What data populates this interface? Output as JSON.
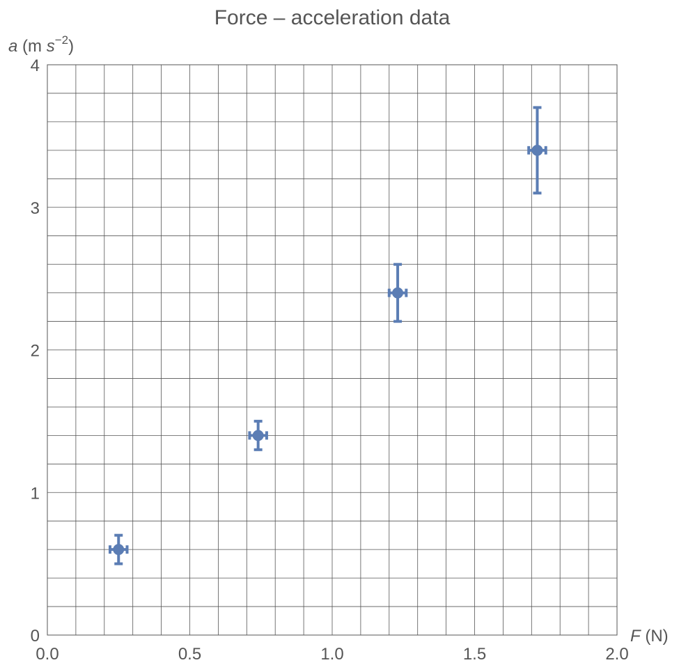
{
  "colors": {
    "series": "#5b7db4",
    "grid": "#555555",
    "text": "#555555"
  },
  "chart_data": {
    "type": "scatter",
    "title": "Force – acceleration data",
    "xlabel": {
      "var": "F",
      "unit": " (N)"
    },
    "ylabel": {
      "var": "a",
      "prefix": " (m ",
      "unit_var": "s",
      "exponent": "−2",
      "suffix": ")"
    },
    "xlim": [
      0,
      2
    ],
    "ylim": [
      0,
      4
    ],
    "grid": true,
    "grid_step_x": 0.1,
    "grid_step_y": 0.2,
    "xticks": [
      {
        "value": 0,
        "label": "0.0"
      },
      {
        "value": 0.5,
        "label": "0.5"
      },
      {
        "value": 1,
        "label": "1.0"
      },
      {
        "value": 1.5,
        "label": "1.5"
      },
      {
        "value": 2,
        "label": "2.0"
      }
    ],
    "yticks": [
      {
        "value": 0,
        "label": "0"
      },
      {
        "value": 1,
        "label": "1"
      },
      {
        "value": 2,
        "label": "2"
      },
      {
        "value": 3,
        "label": "3"
      },
      {
        "value": 4,
        "label": "4"
      }
    ],
    "series": [
      {
        "points": [
          {
            "x": 0.25,
            "y": 0.6,
            "x_err": 0.03,
            "y_err": 0.1
          },
          {
            "x": 0.74,
            "y": 1.4,
            "x_err": 0.03,
            "y_err": 0.1
          },
          {
            "x": 1.23,
            "y": 2.4,
            "x_err": 0.03,
            "y_err": 0.2
          },
          {
            "x": 1.72,
            "y": 3.4,
            "x_err": 0.03,
            "y_err": 0.3
          }
        ]
      }
    ]
  }
}
